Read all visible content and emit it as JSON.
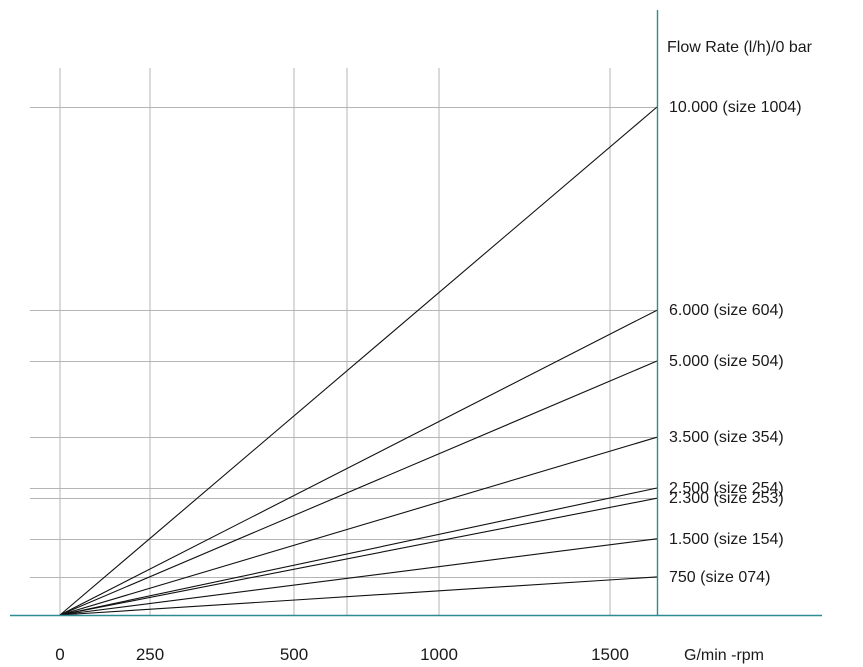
{
  "chart_data": {
    "type": "line",
    "title": "",
    "xlabel": "G/min -rpm",
    "ylabel": "Flow Rate (l/h)/0 bar",
    "x_ticks": [
      {
        "value": 0,
        "label": "0"
      },
      {
        "value": 250,
        "label": "250"
      },
      {
        "value": 500,
        "label": "500"
      },
      {
        "value": 1000,
        "label": "1000"
      },
      {
        "value": 1500,
        "label": "1500"
      }
    ],
    "xlim": [
      0,
      1650
    ],
    "ylim": [
      0,
      10000
    ],
    "grid": true,
    "series": [
      {
        "name": "10.000 (size 1004)",
        "x": [
          0,
          1650
        ],
        "values": [
          0,
          10000
        ]
      },
      {
        "name": "6.000 (size 604)",
        "x": [
          0,
          1650
        ],
        "values": [
          0,
          6000
        ]
      },
      {
        "name": "5.000 (size 504)",
        "x": [
          0,
          1650
        ],
        "values": [
          0,
          5000
        ]
      },
      {
        "name": "3.500 (size 354)",
        "x": [
          0,
          1650
        ],
        "values": [
          0,
          3500
        ]
      },
      {
        "name": "2.500 (size 254)",
        "x": [
          0,
          1650
        ],
        "values": [
          0,
          2500
        ]
      },
      {
        "name": "2.300 (size 253)",
        "x": [
          0,
          1650
        ],
        "values": [
          0,
          2300
        ]
      },
      {
        "name": "1.500 (size 154)",
        "x": [
          0,
          1650
        ],
        "values": [
          0,
          1500
        ]
      },
      {
        "name": "750 (size 074)",
        "x": [
          0,
          1650
        ],
        "values": [
          0,
          750
        ]
      }
    ]
  },
  "colors": {
    "axis": "#2e8b96",
    "grid": "#b5b5b5",
    "line": "#111111"
  }
}
